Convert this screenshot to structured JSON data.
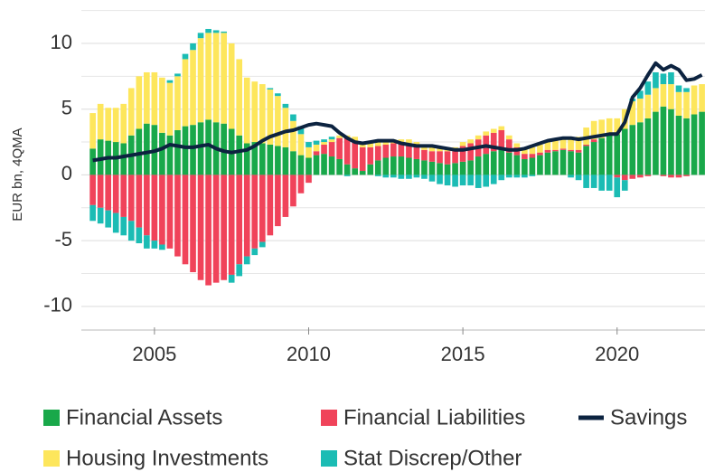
{
  "chart_data": {
    "type": "bar",
    "stacked": true,
    "y_label": "EUR bn, 4QMA",
    "x": [
      2003,
      2003.25,
      2003.5,
      2003.75,
      2004,
      2004.25,
      2004.5,
      2004.75,
      2005,
      2005.25,
      2005.5,
      2005.75,
      2006,
      2006.25,
      2006.5,
      2006.75,
      2007,
      2007.25,
      2007.5,
      2007.75,
      2008,
      2008.25,
      2008.5,
      2008.75,
      2009,
      2009.25,
      2009.5,
      2009.75,
      2010,
      2010.25,
      2010.5,
      2010.75,
      2011,
      2011.25,
      2011.5,
      2011.75,
      2012,
      2012.25,
      2012.5,
      2012.75,
      2013,
      2013.25,
      2013.5,
      2013.75,
      2014,
      2014.25,
      2014.5,
      2014.75,
      2015,
      2015.25,
      2015.5,
      2015.75,
      2016,
      2016.25,
      2016.5,
      2016.75,
      2017,
      2017.25,
      2017.5,
      2017.75,
      2018,
      2018.25,
      2018.5,
      2018.75,
      2019,
      2019.25,
      2019.5,
      2019.75,
      2020,
      2020.25,
      2020.5,
      2020.75,
      2021,
      2021.25,
      2021.5,
      2021.75,
      2022,
      2022.25,
      2022.5,
      2022.75
    ],
    "series": [
      {
        "name": "Financial Assets",
        "type": "bar",
        "color": "#19a84a",
        "values": [
          2.0,
          2.7,
          2.6,
          2.5,
          2.4,
          3.0,
          3.5,
          3.9,
          3.8,
          3.2,
          3.0,
          3.4,
          3.7,
          3.8,
          4.0,
          4.2,
          4.0,
          3.9,
          3.5,
          3.0,
          2.4,
          2.5,
          2.4,
          2.3,
          2.2,
          2.1,
          1.8,
          1.5,
          1.3,
          1.5,
          1.6,
          1.4,
          1.2,
          0.8,
          0.5,
          0.3,
          0.8,
          1.1,
          1.3,
          1.4,
          1.4,
          1.3,
          1.2,
          1.1,
          1.0,
          0.9,
          0.8,
          0.9,
          1.0,
          1.1,
          1.4,
          1.6,
          1.8,
          1.9,
          1.7,
          1.5,
          1.2,
          1.3,
          1.5,
          1.7,
          1.8,
          1.9,
          1.8,
          1.7,
          2.2,
          2.5,
          2.8,
          3.0,
          3.1,
          3.5,
          3.8,
          4.0,
          4.3,
          4.8,
          5.2,
          5.0,
          4.5,
          4.3,
          4.6,
          4.8
        ]
      },
      {
        "name": "Financial Liabilities",
        "type": "bar",
        "color": "#f0435a",
        "values": [
          -2.3,
          -2.5,
          -2.7,
          -2.9,
          -3.2,
          -3.5,
          -4.0,
          -4.6,
          -5.0,
          -5.3,
          -5.6,
          -6.2,
          -6.8,
          -7.4,
          -8.0,
          -8.4,
          -8.2,
          -8.0,
          -7.6,
          -6.8,
          -6.2,
          -5.6,
          -5.1,
          -4.6,
          -3.9,
          -3.2,
          -2.4,
          -1.4,
          -0.6,
          0.3,
          0.7,
          1.1,
          1.6,
          2.0,
          2.1,
          1.8,
          1.3,
          1.1,
          1.0,
          1.0,
          1.0,
          1.1,
          1.0,
          0.8,
          0.8,
          0.9,
          1.0,
          0.9,
          1.2,
          1.3,
          1.3,
          1.4,
          1.4,
          1.5,
          1.0,
          0.6,
          0.4,
          0.3,
          0.2,
          0.2,
          0.1,
          0.1,
          0.1,
          0.2,
          0.1,
          0.2,
          0.0,
          0.0,
          -0.2,
          -0.4,
          -0.3,
          -0.2,
          -0.1,
          0.0,
          -0.1,
          -0.2,
          -0.2,
          -0.1,
          0.0,
          0.0
        ]
      },
      {
        "name": "Housing Investments",
        "type": "bar",
        "color": "#fde65c",
        "values": [
          2.7,
          2.7,
          2.5,
          2.6,
          3.0,
          3.6,
          4.0,
          3.9,
          4.0,
          4.2,
          4.0,
          4.1,
          5.1,
          5.7,
          6.4,
          6.6,
          6.8,
          6.9,
          6.5,
          5.8,
          5.0,
          4.6,
          4.5,
          4.2,
          3.8,
          3.0,
          2.3,
          1.6,
          0.8,
          0.5,
          0.2,
          0.2,
          0.2,
          0.2,
          0.3,
          0.3,
          0.3,
          0.3,
          0.3,
          0.3,
          0.3,
          0.3,
          0.3,
          0.3,
          0.3,
          0.3,
          0.3,
          0.3,
          0.3,
          0.3,
          0.3,
          0.3,
          0.3,
          0.3,
          0.3,
          0.3,
          0.4,
          0.5,
          0.6,
          0.6,
          0.7,
          0.8,
          0.9,
          1.0,
          1.3,
          1.4,
          1.4,
          1.3,
          1.2,
          1.5,
          1.8,
          1.8,
          1.8,
          1.8,
          1.7,
          1.9,
          1.8,
          2.0,
          2.2,
          2.1
        ]
      },
      {
        "name": "Stat Discrep/Other",
        "type": "bar",
        "color": "#1bbcb4",
        "values": [
          -1.2,
          -1.2,
          -1.3,
          -1.5,
          -1.4,
          -1.5,
          -1.2,
          -1.0,
          -0.6,
          -0.4,
          0.2,
          0.2,
          0.4,
          0.5,
          0.4,
          0.3,
          0.2,
          0.1,
          -0.6,
          -0.9,
          -0.6,
          -0.5,
          -0.4,
          0.1,
          0.2,
          0.3,
          0.5,
          0.6,
          0.4,
          0.3,
          0.2,
          0.2,
          0.0,
          -0.1,
          0.0,
          0.0,
          0.1,
          -0.1,
          -0.2,
          -0.2,
          -0.3,
          -0.3,
          -0.2,
          -0.3,
          -0.5,
          -0.7,
          -0.8,
          -0.9,
          -0.8,
          -0.8,
          -1.0,
          -0.9,
          -0.7,
          -0.4,
          -0.2,
          -0.2,
          -0.2,
          -0.1,
          0.0,
          0.0,
          0.0,
          0.0,
          -0.2,
          -0.4,
          -1.0,
          -1.0,
          -1.2,
          -1.2,
          -1.5,
          -0.8,
          0.2,
          0.6,
          1.0,
          1.2,
          0.8,
          0.9,
          0.5,
          0.3,
          0.0,
          0.0
        ]
      },
      {
        "name": "Savings",
        "type": "line",
        "color": "#0c2340",
        "values": [
          1.1,
          1.2,
          1.3,
          1.3,
          1.4,
          1.5,
          1.6,
          1.7,
          1.8,
          2.0,
          2.3,
          2.2,
          2.1,
          2.1,
          2.2,
          2.3,
          2.0,
          1.8,
          1.7,
          1.8,
          1.9,
          2.2,
          2.6,
          2.9,
          3.1,
          3.3,
          3.4,
          3.6,
          3.8,
          3.9,
          3.8,
          3.7,
          3.2,
          2.8,
          2.5,
          2.4,
          2.5,
          2.6,
          2.6,
          2.6,
          2.4,
          2.3,
          2.2,
          2.2,
          2.2,
          2.1,
          2.0,
          1.9,
          1.9,
          2.0,
          2.1,
          2.2,
          2.1,
          2.0,
          1.9,
          1.9,
          2.0,
          2.2,
          2.4,
          2.6,
          2.7,
          2.8,
          2.8,
          2.7,
          2.8,
          2.9,
          3.0,
          3.1,
          3.1,
          4.0,
          5.9,
          6.6,
          7.6,
          8.5,
          8.0,
          8.3,
          8.0,
          7.2,
          7.3,
          7.6
        ]
      }
    ],
    "xlim": [
      2002.63,
      2022.85
    ],
    "xticks": [
      2005,
      2010,
      2015,
      2020
    ],
    "ylim": [
      -11.8,
      13.3
    ],
    "yticks": [
      -10,
      -5,
      0,
      5,
      10
    ],
    "minor_gridlines": [
      -7.5,
      -2.5,
      2.5,
      7.5,
      12.5
    ],
    "grid": true,
    "legend": "bottom"
  }
}
